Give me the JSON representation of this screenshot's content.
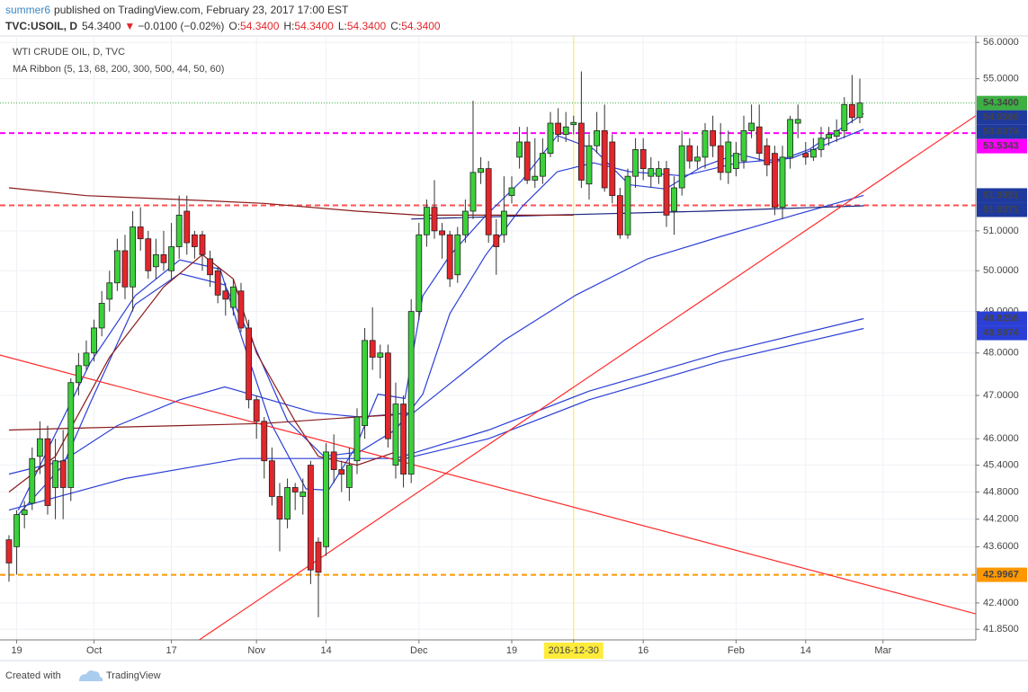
{
  "header": {
    "author": "summer6",
    "published": "published on TradingView.com, February 23, 2017 17:00 EST",
    "symbol": "TVC:USOIL, D",
    "last": "54.3400",
    "arrow": "▼",
    "change": "−0.0100 (−0.02%)",
    "ohlc": [
      {
        "key": "O:",
        "value": "54.3400"
      },
      {
        "key": "H:",
        "value": "54.3400"
      },
      {
        "key": "L:",
        "value": "54.3400"
      },
      {
        "key": "C:",
        "value": "54.3400"
      }
    ]
  },
  "chart_data": {
    "type": "candlestick",
    "title": "WTI CRUDE OIL, D, TVC",
    "subtitle": "MA Ribbon (5, 13, 68, 200, 300, 500, 44, 50, 60)",
    "log_scale": true,
    "grid": true,
    "up_color": "#3bd13b",
    "down_color": "#e3262b",
    "categories": [
      null,
      "19",
      null,
      null,
      null,
      null,
      null,
      null,
      null,
      null,
      null,
      "Oct",
      null,
      null,
      null,
      null,
      null,
      null,
      null,
      null,
      null,
      "17",
      null,
      null,
      null,
      null,
      null,
      null,
      null,
      null,
      null,
      null,
      "Nov",
      null,
      null,
      null,
      null,
      null,
      null,
      null,
      null,
      "14",
      null,
      null,
      null,
      null,
      null,
      null,
      null,
      null,
      null,
      null,
      null,
      "Dec",
      null,
      null,
      null,
      null,
      null,
      null,
      null,
      null,
      null,
      null,
      null,
      "19",
      null,
      null,
      null,
      null,
      null,
      null,
      null,
      "2016-12-30",
      null,
      null,
      null,
      null,
      null,
      null,
      null,
      null,
      "16",
      null,
      null,
      null,
      null,
      null,
      null,
      null,
      null,
      null,
      null,
      null,
      "Feb",
      null,
      null,
      null,
      null,
      null,
      null,
      null,
      null,
      "14",
      null,
      null,
      null,
      null,
      null,
      null,
      null,
      null,
      null,
      "Mar"
    ],
    "open": [
      43.75,
      43.6,
      44.3,
      44.55,
      45.6,
      46.0,
      44.9,
      45.5,
      44.9,
      47.3,
      47.7,
      48.0,
      48.6,
      49.3,
      49.7,
      50.5,
      49.6,
      51.1,
      50.8,
      50.1,
      50.4,
      50.0,
      50.6,
      51.5,
      50.9,
      50.9,
      50.3,
      50.0,
      49.5,
      49.1,
      49.5,
      48.6,
      46.9,
      46.4,
      45.5,
      44.7,
      44.2,
      44.9,
      44.7,
      45.4,
      43.7,
      43.6,
      45.7,
      45.3,
      44.9,
      45.5,
      46.3,
      48.3,
      47.9,
      48.0,
      45.4,
      46.8,
      45.2,
      49.0,
      50.9,
      51.6,
      51.0,
      50.9,
      49.9,
      50.9,
      51.5,
      52.5,
      52.6,
      50.9,
      50.9,
      51.9,
      52.9,
      53.3,
      52.3,
      52.4,
      53.0,
      53.8,
      53.5,
      53.76,
      53.8,
      52.2,
      53.2,
      53.6,
      53.3,
      51.9,
      50.9,
      52.4,
      53.1,
      52.4,
      52.4,
      52.6,
      51.5,
      52.1,
      53.2,
      52.8,
      52.9,
      53.6,
      53.2,
      52.5,
      52.6,
      52.8,
      53.6,
      53.7,
      53.2,
      53.0,
      51.6,
      52.9,
      53.8,
      53.0,
      52.9,
      53.1,
      53.4,
      53.45,
      53.6,
      54.3,
      53.95,
      null,
      null,
      null
    ],
    "high": [
      43.85,
      44.4,
      44.6,
      45.8,
      46.4,
      46.3,
      46.0,
      46.2,
      47.4,
      48.0,
      48.3,
      48.8,
      49.5,
      50.0,
      50.8,
      50.9,
      51.5,
      51.6,
      51.0,
      50.8,
      51.0,
      51.2,
      51.9,
      51.9,
      51.0,
      51.0,
      50.5,
      50.1,
      49.7,
      49.8,
      49.7,
      48.8,
      47.0,
      46.5,
      45.8,
      45.0,
      45.1,
      45.0,
      45.1,
      45.5,
      43.8,
      45.9,
      46.1,
      45.5,
      45.8,
      46.7,
      48.6,
      49.1,
      48.2,
      48.2,
      47.3,
      47.0,
      49.3,
      51.2,
      51.8,
      52.3,
      51.2,
      51.0,
      51.1,
      51.8,
      54.4,
      52.9,
      52.8,
      51.3,
      52.4,
      52.4,
      53.7,
      53.7,
      53.4,
      53.4,
      54.1,
      54.2,
      54.1,
      54.0,
      55.2,
      53.5,
      54.1,
      54.3,
      53.5,
      52.1,
      52.6,
      53.4,
      53.4,
      52.9,
      52.8,
      52.8,
      52.4,
      53.6,
      53.4,
      53.2,
      53.8,
      54.0,
      53.8,
      53.6,
      53.3,
      54.0,
      54.3,
      54.3,
      53.4,
      53.2,
      53.2,
      54.0,
      54.3,
      53.3,
      53.4,
      53.7,
      53.7,
      53.9,
      54.5,
      55.1,
      55.0,
      null,
      null,
      null
    ],
    "low": [
      42.85,
      43.0,
      44.0,
      44.4,
      45.2,
      44.3,
      44.2,
      44.2,
      44.6,
      47.0,
      47.6,
      47.8,
      48.4,
      49.0,
      49.5,
      49.3,
      49.0,
      50.5,
      49.8,
      49.8,
      50.0,
      49.8,
      50.3,
      50.4,
      50.3,
      50.0,
      49.6,
      49.2,
      48.9,
      48.9,
      48.5,
      46.7,
      46.0,
      45.1,
      44.5,
      43.5,
      44.0,
      44.4,
      44.3,
      42.8,
      42.1,
      43.4,
      45.0,
      44.8,
      44.6,
      45.2,
      46.0,
      47.6,
      47.4,
      45.8,
      45.1,
      44.9,
      45.0,
      48.8,
      50.6,
      50.8,
      50.3,
      49.6,
      49.7,
      50.7,
      51.3,
      52.2,
      50.7,
      49.9,
      50.7,
      51.7,
      52.6,
      52.2,
      52.1,
      52.2,
      52.9,
      53.3,
      53.3,
      53.5,
      52.1,
      51.8,
      53.0,
      52.0,
      51.7,
      50.8,
      50.8,
      52.1,
      52.3,
      52.1,
      52.2,
      51.1,
      50.9,
      51.9,
      52.6,
      52.6,
      52.6,
      52.9,
      52.3,
      52.2,
      52.4,
      52.6,
      53.4,
      52.8,
      52.4,
      51.4,
      51.3,
      52.6,
      53.4,
      52.7,
      52.8,
      52.9,
      53.2,
      53.3,
      53.4,
      53.8,
      53.8,
      null,
      null,
      null
    ],
    "close": [
      43.25,
      44.3,
      44.4,
      45.55,
      46.0,
      44.5,
      45.5,
      44.9,
      47.3,
      47.7,
      48.0,
      48.6,
      49.2,
      49.7,
      50.5,
      49.6,
      51.1,
      50.8,
      50.0,
      50.4,
      50.2,
      50.6,
      51.4,
      50.7,
      50.6,
      50.4,
      49.9,
      49.4,
      49.3,
      49.6,
      48.6,
      46.9,
      46.4,
      45.5,
      44.7,
      44.2,
      44.9,
      44.8,
      44.8,
      43.1,
      43.05,
      45.7,
      45.3,
      45.2,
      45.4,
      46.5,
      48.3,
      47.9,
      48.0,
      46.0,
      46.8,
      45.2,
      49.0,
      50.9,
      51.6,
      51.0,
      50.9,
      49.8,
      50.9,
      51.5,
      52.5,
      52.6,
      50.9,
      50.6,
      51.5,
      52.1,
      53.3,
      52.3,
      52.4,
      53.0,
      53.8,
      53.5,
      53.7,
      53.82,
      52.3,
      53.2,
      53.6,
      52.1,
      51.9,
      50.9,
      52.4,
      53.1,
      52.6,
      52.6,
      52.6,
      51.4,
      52.1,
      53.2,
      52.8,
      52.9,
      53.6,
      53.2,
      52.5,
      53.3,
      53.0,
      53.6,
      53.8,
      53.0,
      52.7,
      51.6,
      52.9,
      53.9,
      53.9,
      52.9,
      53.1,
      53.4,
      53.5,
      53.6,
      54.3,
      53.95,
      54.34,
      null,
      null,
      null
    ],
    "xlim": [
      -1.16,
      125
    ],
    "ylim": [
      41.63,
      56.18
    ],
    "yticks": [
      {
        "value": 56,
        "label": "56.0000"
      },
      {
        "value": 55,
        "label": "55.0000"
      },
      {
        "value": 51,
        "label": "51.0000"
      },
      {
        "value": 50,
        "label": "50.0000"
      },
      {
        "value": 49,
        "label": "49.0000"
      },
      {
        "value": 48,
        "label": "48.0000"
      },
      {
        "value": 47,
        "label": "47.0000"
      },
      {
        "value": 46,
        "label": "46.0000"
      },
      {
        "value": 45.4,
        "label": "45.4000"
      },
      {
        "value": 44.8,
        "label": "44.8000"
      },
      {
        "value": 44.2,
        "label": "44.2000"
      },
      {
        "value": 43.6,
        "label": "43.6000"
      },
      {
        "value": 42.4,
        "label": "42.4000"
      },
      {
        "value": 41.85,
        "label": "41.8500"
      }
    ],
    "crosshair": {
      "category": 73,
      "color": "#ffeb3b"
    },
    "lines": [
      {
        "color": "#2b3fd6",
        "x": [
          1.2,
          10.5,
          16.3,
          22.1,
          27.3,
          30.2,
          33.7,
          38.4,
          41.3,
          44.8,
          47.7,
          51.2,
          53.5,
          57,
          61.6,
          66.3,
          70.9,
          75.6,
          80.2,
          84.9,
          89.5,
          94.2,
          98.8,
          103.5,
          110.5
        ],
        "y": [
          44.4,
          47.77,
          49.38,
          50.27,
          50.04,
          48.31,
          46.41,
          44.87,
          44.84,
          45.8,
          47.03,
          46.93,
          49.38,
          50.38,
          51.38,
          52.29,
          53.47,
          53.11,
          52.18,
          52.07,
          52.64,
          52.99,
          52.75,
          53.11,
          54.0569
        ]
      },
      {
        "color": "#2b3fd6",
        "x": [
          1.2,
          7,
          10.5,
          16.3,
          22.1,
          27.9,
          31.4,
          36,
          40.7,
          45.3,
          50,
          53.5,
          57,
          61.6,
          66.3,
          70.9,
          75.6,
          80.2,
          87.2,
          94.2,
          101.2,
          110.5
        ],
        "y": [
          44.3,
          45.4,
          46.82,
          49.17,
          49.93,
          49.65,
          48.31,
          46.41,
          45.6,
          45.7,
          46.21,
          47.03,
          48.95,
          50.38,
          51.61,
          52.52,
          52.75,
          52.52,
          52.41,
          52.75,
          52.87,
          53.6374
        ]
      },
      {
        "color": "#2b3fd6",
        "x": [
          0,
          7,
          14,
          22.1,
          27.9,
          33.7,
          39.5,
          45.3,
          52.3,
          64,
          73.3,
          82.6,
          91.9,
          101.2,
          110.5
        ],
        "y": [
          45.2,
          45.5,
          46.3,
          46.9,
          47.2,
          46.9,
          46.6,
          46.5,
          46.6,
          48.3,
          49.4,
          50.3,
          50.85,
          51.38,
          51.9051
        ]
      },
      {
        "color": "#2b3fd6",
        "x": [
          0,
          15,
          30,
          50,
          62,
          75,
          92,
          110.5
        ],
        "y": [
          44.4,
          45.1,
          45.55,
          45.55,
          46.2,
          47.1,
          48.0,
          48.8258
        ]
      },
      {
        "color": "#2b3fd6",
        "x": [
          50,
          62,
          75,
          92,
          110.5
        ],
        "y": [
          45.5,
          46.0,
          46.9,
          47.8,
          48.5874
        ]
      },
      {
        "color": "#1a237e",
        "x": [
          52,
          70,
          90,
          110.5
        ],
        "y": [
          51.3,
          51.4,
          51.5,
          51.6371
        ]
      },
      {
        "color": "#8b1a1a",
        "x": [
          0,
          10,
          22,
          33,
          45,
          53,
          73
        ],
        "y": [
          52.1,
          51.9,
          51.8,
          51.7,
          51.5,
          51.4,
          51.4
        ]
      },
      {
        "color": "#8b1a1a",
        "x": [
          0,
          10,
          22,
          33,
          45,
          50
        ],
        "y": [
          46.2,
          46.25,
          46.3,
          46.35,
          46.5,
          46.55
        ]
      },
      {
        "color": "#8b1a1a",
        "x": [
          0,
          6,
          13,
          20,
          25,
          29,
          32,
          37,
          40,
          45,
          50
        ],
        "y": [
          44.8,
          45.6,
          47.9,
          49.6,
          50.4,
          49.8,
          48.0,
          46.4,
          45.6,
          45.4,
          45.7
        ]
      },
      {
        "color": "#ff2a2a",
        "x": [
          -1.16,
          125
        ],
        "y": [
          47.95,
          42.17
        ]
      },
      {
        "color": "#ff2a2a",
        "x": [
          24.6,
          125
        ],
        "y": [
          41.63,
          54.0
        ]
      }
    ],
    "levels": [
      {
        "value": 54.34,
        "label": "54.3400",
        "color": "#3cb043",
        "style": "dotted"
      },
      {
        "value": 53.5343,
        "label": "53.5343",
        "color": "#ff00ff",
        "style": "dashed"
      },
      {
        "value": 51.65,
        "color": "#ff5252",
        "style": "dashed"
      },
      {
        "value": 42.9967,
        "label": "42.9967",
        "color": "#ff9800",
        "style": "dashed"
      }
    ],
    "price_labels": [
      {
        "value": 54.0569,
        "label": "54.0569",
        "color": "#1f3a9e"
      },
      {
        "value": 53.6374,
        "label": "53.6374",
        "color": "#1f3a9e"
      },
      {
        "value": 51.9051,
        "label": "51.9051",
        "color": "#1f3a9e"
      },
      {
        "value": 51.6371,
        "label": "51.6371",
        "color": "#1f3a9e"
      },
      {
        "value": 48.8258,
        "label": "48.8258",
        "color": "#2b3fd6"
      },
      {
        "value": 48.5874,
        "label": "48.5874",
        "color": "#2b3fd6"
      }
    ]
  },
  "footer": {
    "created": "Created with",
    "brand": "TradingView"
  }
}
